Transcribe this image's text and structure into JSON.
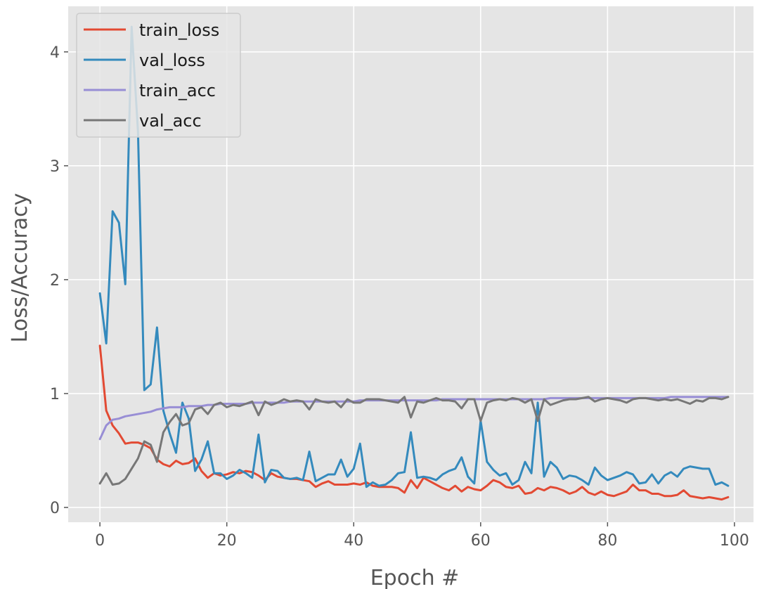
{
  "chart_data": {
    "type": "line",
    "xlabel": "Epoch #",
    "ylabel": "Loss/Accuracy",
    "xlim": [
      -5,
      103
    ],
    "ylim": [
      -0.13,
      4.4
    ],
    "xticks": [
      0,
      20,
      40,
      60,
      80,
      100
    ],
    "yticks": [
      0,
      1,
      2,
      3,
      4
    ],
    "grid": true,
    "legend_position": "top-left",
    "x": [
      0,
      1,
      2,
      3,
      4,
      5,
      6,
      7,
      8,
      9,
      10,
      11,
      12,
      13,
      14,
      15,
      16,
      17,
      18,
      19,
      20,
      21,
      22,
      23,
      24,
      25,
      26,
      27,
      28,
      29,
      30,
      31,
      32,
      33,
      34,
      35,
      36,
      37,
      38,
      39,
      40,
      41,
      42,
      43,
      44,
      45,
      46,
      47,
      48,
      49,
      50,
      51,
      52,
      53,
      54,
      55,
      56,
      57,
      58,
      59,
      60,
      61,
      62,
      63,
      64,
      65,
      66,
      67,
      68,
      69,
      70,
      71,
      72,
      73,
      74,
      75,
      76,
      77,
      78,
      79,
      80,
      81,
      82,
      83,
      84,
      85,
      86,
      87,
      88,
      89,
      90,
      91,
      92,
      93,
      94,
      95,
      96,
      97,
      98,
      99
    ],
    "series": [
      {
        "name": "train_loss",
        "color": "#e24a33",
        "values": [
          1.42,
          0.85,
          0.72,
          0.65,
          0.56,
          0.57,
          0.57,
          0.55,
          0.52,
          0.42,
          0.38,
          0.36,
          0.41,
          0.38,
          0.39,
          0.43,
          0.32,
          0.26,
          0.3,
          0.28,
          0.29,
          0.31,
          0.3,
          0.32,
          0.31,
          0.28,
          0.24,
          0.3,
          0.27,
          0.26,
          0.25,
          0.25,
          0.24,
          0.23,
          0.18,
          0.21,
          0.23,
          0.2,
          0.2,
          0.2,
          0.21,
          0.2,
          0.22,
          0.19,
          0.18,
          0.18,
          0.18,
          0.17,
          0.13,
          0.24,
          0.17,
          0.26,
          0.23,
          0.2,
          0.17,
          0.15,
          0.19,
          0.14,
          0.18,
          0.16,
          0.15,
          0.19,
          0.24,
          0.22,
          0.18,
          0.17,
          0.19,
          0.12,
          0.13,
          0.17,
          0.15,
          0.18,
          0.17,
          0.15,
          0.12,
          0.14,
          0.18,
          0.13,
          0.11,
          0.14,
          0.11,
          0.1,
          0.12,
          0.14,
          0.2,
          0.15,
          0.15,
          0.12,
          0.12,
          0.1,
          0.1,
          0.11,
          0.15,
          0.1,
          0.09,
          0.08,
          0.09,
          0.08,
          0.07,
          0.09
        ]
      },
      {
        "name": "val_loss",
        "color": "#348abd",
        "values": [
          1.88,
          1.44,
          2.6,
          2.5,
          1.96,
          4.22,
          3.3,
          1.03,
          1.08,
          1.58,
          0.85,
          0.65,
          0.48,
          0.92,
          0.78,
          0.32,
          0.42,
          0.58,
          0.3,
          0.3,
          0.25,
          0.28,
          0.33,
          0.3,
          0.26,
          0.64,
          0.22,
          0.33,
          0.32,
          0.26,
          0.25,
          0.26,
          0.24,
          0.49,
          0.23,
          0.26,
          0.29,
          0.29,
          0.42,
          0.27,
          0.34,
          0.56,
          0.18,
          0.22,
          0.19,
          0.2,
          0.24,
          0.3,
          0.31,
          0.66,
          0.26,
          0.27,
          0.26,
          0.24,
          0.29,
          0.32,
          0.34,
          0.44,
          0.27,
          0.21,
          0.76,
          0.4,
          0.33,
          0.28,
          0.3,
          0.2,
          0.24,
          0.4,
          0.3,
          0.92,
          0.27,
          0.4,
          0.35,
          0.25,
          0.28,
          0.27,
          0.24,
          0.2,
          0.35,
          0.28,
          0.24,
          0.26,
          0.28,
          0.31,
          0.29,
          0.21,
          0.22,
          0.29,
          0.21,
          0.28,
          0.31,
          0.27,
          0.34,
          0.36,
          0.35,
          0.34,
          0.34,
          0.2,
          0.22,
          0.19
        ]
      },
      {
        "name": "train_acc",
        "color": "#988ed5",
        "values": [
          0.6,
          0.72,
          0.77,
          0.78,
          0.8,
          0.81,
          0.82,
          0.83,
          0.84,
          0.86,
          0.87,
          0.88,
          0.88,
          0.88,
          0.89,
          0.89,
          0.89,
          0.9,
          0.9,
          0.91,
          0.91,
          0.91,
          0.91,
          0.91,
          0.92,
          0.92,
          0.92,
          0.92,
          0.92,
          0.92,
          0.93,
          0.93,
          0.93,
          0.93,
          0.93,
          0.93,
          0.93,
          0.93,
          0.93,
          0.93,
          0.93,
          0.94,
          0.94,
          0.94,
          0.94,
          0.94,
          0.94,
          0.94,
          0.94,
          0.94,
          0.94,
          0.94,
          0.94,
          0.94,
          0.95,
          0.95,
          0.95,
          0.95,
          0.95,
          0.95,
          0.95,
          0.95,
          0.95,
          0.95,
          0.95,
          0.95,
          0.95,
          0.95,
          0.95,
          0.95,
          0.95,
          0.96,
          0.96,
          0.96,
          0.96,
          0.96,
          0.96,
          0.96,
          0.96,
          0.96,
          0.96,
          0.96,
          0.96,
          0.96,
          0.96,
          0.96,
          0.96,
          0.96,
          0.96,
          0.96,
          0.97,
          0.97,
          0.97,
          0.97,
          0.97,
          0.97,
          0.97,
          0.97,
          0.97,
          0.97
        ]
      },
      {
        "name": "val_acc",
        "color": "#777777",
        "values": [
          0.21,
          0.3,
          0.2,
          0.21,
          0.25,
          0.34,
          0.43,
          0.58,
          0.55,
          0.4,
          0.66,
          0.75,
          0.82,
          0.72,
          0.74,
          0.86,
          0.88,
          0.82,
          0.9,
          0.92,
          0.88,
          0.9,
          0.89,
          0.91,
          0.93,
          0.81,
          0.93,
          0.9,
          0.92,
          0.95,
          0.93,
          0.94,
          0.93,
          0.86,
          0.95,
          0.93,
          0.92,
          0.93,
          0.88,
          0.95,
          0.92,
          0.92,
          0.95,
          0.95,
          0.95,
          0.94,
          0.93,
          0.92,
          0.97,
          0.79,
          0.93,
          0.92,
          0.94,
          0.96,
          0.94,
          0.94,
          0.93,
          0.87,
          0.95,
          0.95,
          0.76,
          0.92,
          0.94,
          0.95,
          0.94,
          0.96,
          0.95,
          0.92,
          0.95,
          0.76,
          0.95,
          0.9,
          0.92,
          0.94,
          0.95,
          0.95,
          0.96,
          0.97,
          0.93,
          0.95,
          0.96,
          0.95,
          0.94,
          0.92,
          0.95,
          0.96,
          0.96,
          0.95,
          0.94,
          0.95,
          0.94,
          0.95,
          0.93,
          0.91,
          0.94,
          0.93,
          0.96,
          0.96,
          0.95,
          0.97
        ]
      }
    ]
  }
}
